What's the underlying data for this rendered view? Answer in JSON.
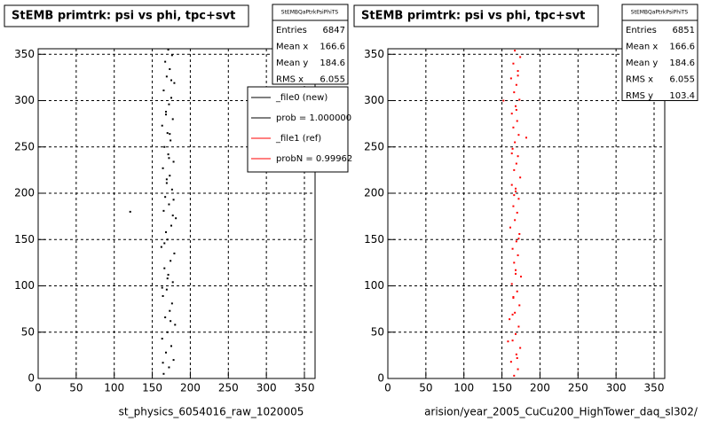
{
  "chart_data": [
    {
      "type": "scatter",
      "title": "StEMB primtrk: psi vs phi, tpc+svt",
      "x_label": "st_physics_6054016_raw_1020005",
      "color": "#000000",
      "xlim": [
        0,
        364
      ],
      "ylim": [
        0,
        356
      ],
      "xticks": [
        0,
        50,
        100,
        150,
        200,
        250,
        300,
        350
      ],
      "yticks": [
        0,
        50,
        100,
        150,
        200,
        250,
        300,
        350
      ],
      "grid": true,
      "stats_title": "StEMBQaPtrkPsiPhiTS",
      "stats": [
        {
          "label": "Entries",
          "value": 6847
        },
        {
          "label": "Mean x",
          "value": 166.6
        },
        {
          "label": "Mean y",
          "value": 184.6
        },
        {
          "label": "RMS x",
          "value": 6.055
        }
      ],
      "legend": [
        {
          "name": "_file0 (new)",
          "color": "#000000"
        },
        {
          "name": "prob = 1.000000",
          "color": "#000000"
        },
        {
          "name": "_file1 (ref)",
          "color": "#ff0000"
        },
        {
          "name": "probN = 0.99962",
          "color": "#ff0000"
        }
      ],
      "x": [
        165,
        172,
        178,
        168,
        175,
        163,
        170,
        180,
        167,
        173,
        176,
        164,
        169,
        177,
        171,
        166,
        174,
        179,
        162,
        170,
        168,
        175,
        181,
        165,
        172,
        167,
        176,
        169,
        173,
        164,
        178,
        171,
        166,
        174,
        170,
        163,
        177,
        168,
        172,
        175,
        165,
        179,
        169,
        173,
        167,
        176,
        171,
        164,
        174,
        170,
        166,
        178,
        172,
        168,
        175,
        163,
        177,
        169,
        173,
        121
      ],
      "values": [
        5,
        12,
        20,
        28,
        35,
        43,
        50,
        58,
        66,
        73,
        81,
        89,
        96,
        104,
        112,
        119,
        127,
        135,
        142,
        150,
        158,
        165,
        173,
        181,
        188,
        196,
        204,
        211,
        219,
        227,
        234,
        242,
        250,
        257,
        265,
        273,
        280,
        288,
        296,
        303,
        311,
        319,
        326,
        334,
        342,
        349,
        355,
        17,
        62,
        108,
        146,
        193,
        238,
        285,
        322,
        98,
        176,
        215,
        264,
        180
      ]
    },
    {
      "type": "scatter",
      "title": "StEMB primtrk: psi vs phi, tpc+svt",
      "x_label": "arision/year_2005_CuCu200_HighTower_daq_sl302/",
      "color": "#ff0000",
      "xlim": [
        0,
        364
      ],
      "ylim": [
        0,
        356
      ],
      "xticks": [
        0,
        50,
        100,
        150,
        200,
        250,
        300,
        350
      ],
      "yticks": [
        0,
        50,
        100,
        150,
        200,
        250,
        300,
        350
      ],
      "grid": true,
      "stats_title": "StEMBQaPtrkPsiPhiTS",
      "stats": [
        {
          "label": "Entries",
          "value": 6851
        },
        {
          "label": "Mean x",
          "value": 166.6
        },
        {
          "label": "Mean y",
          "value": 184.6
        },
        {
          "label": "RMS x",
          "value": 6.055
        },
        {
          "label": "RMS y",
          "value": 103.4
        }
      ],
      "x": [
        166,
        171,
        162,
        169,
        174,
        164,
        168,
        172,
        160,
        167,
        173,
        165,
        170,
        163,
        175,
        168,
        166,
        171,
        164,
        169,
        173,
        161,
        167,
        170,
        165,
        172,
        168,
        163,
        174,
        166,
        169,
        171,
        164,
        167,
        172,
        165,
        170,
        163,
        168,
        173,
        166,
        169,
        162,
        171,
        165,
        174,
        167,
        170,
        164,
        168,
        172,
        166,
        163,
        169,
        171,
        165,
        168,
        152,
        158,
        182
      ],
      "values": [
        3,
        10,
        18,
        26,
        33,
        41,
        48,
        56,
        64,
        71,
        79,
        87,
        94,
        102,
        110,
        117,
        125,
        133,
        140,
        148,
        156,
        163,
        171,
        179,
        186,
        194,
        202,
        209,
        217,
        225,
        232,
        240,
        248,
        255,
        263,
        271,
        278,
        286,
        294,
        301,
        309,
        317,
        324,
        332,
        340,
        347,
        354,
        22,
        69,
        113,
        151,
        198,
        243,
        290,
        327,
        88,
        205,
        300,
        40,
        260
      ]
    }
  ]
}
